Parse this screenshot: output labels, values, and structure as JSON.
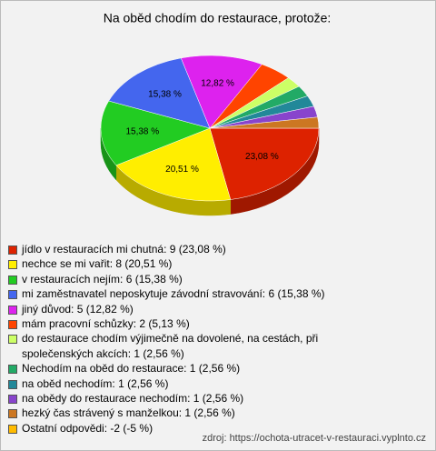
{
  "chart_data": {
    "type": "pie",
    "title": "Na oběd chodím do restaurace, protože:",
    "categories": [
      "jídlo v restauracích mi chutná: 9 (23,08 %)",
      "nechce se mi vařit: 8 (20,51 %)",
      "v restauracích nejím: 6 (15,38 %)",
      "mi zaměstnavatel neposkytuje závodní stravování: 6 (15,38 %)",
      "jiný důvod: 5 (12,82 %)",
      "mám pracovní schůzky: 2 (5,13 %)",
      "do restaurace chodím výjimečně na dovolené, na cestách, při společenských akcích: 1 (2,56 %)",
      "Nechodím na oběd do restaurace: 1 (2,56 %)",
      "na oběd nechodím: 1 (2,56 %)",
      "na obědy do restaurace nechodím: 1 (2,56 %)",
      "hezký čas strávený s manželkou: 1 (2,56 %)",
      "Ostatní odpovědi: -2 (-5 %)"
    ],
    "values": [
      23.08,
      20.51,
      15.38,
      15.38,
      12.82,
      5.13,
      2.56,
      2.56,
      2.56,
      2.56,
      2.56,
      -5
    ],
    "value_labels": [
      "23,08 %",
      "20,51 %",
      "15,38 %",
      "15,38 %",
      "12,82 %",
      null,
      null,
      null,
      null,
      null,
      null,
      null
    ],
    "colors": [
      "#dd2200",
      "#ffee00",
      "#22cc22",
      "#4466ee",
      "#dd22ee",
      "#ff4400",
      "#ccff66",
      "#22aa66",
      "#228899",
      "#8844cc",
      "#cc7722",
      "#ffbb00"
    ],
    "source": "zdroj: https://ochota-utracet-v-restauraci.vyplnto.cz"
  }
}
